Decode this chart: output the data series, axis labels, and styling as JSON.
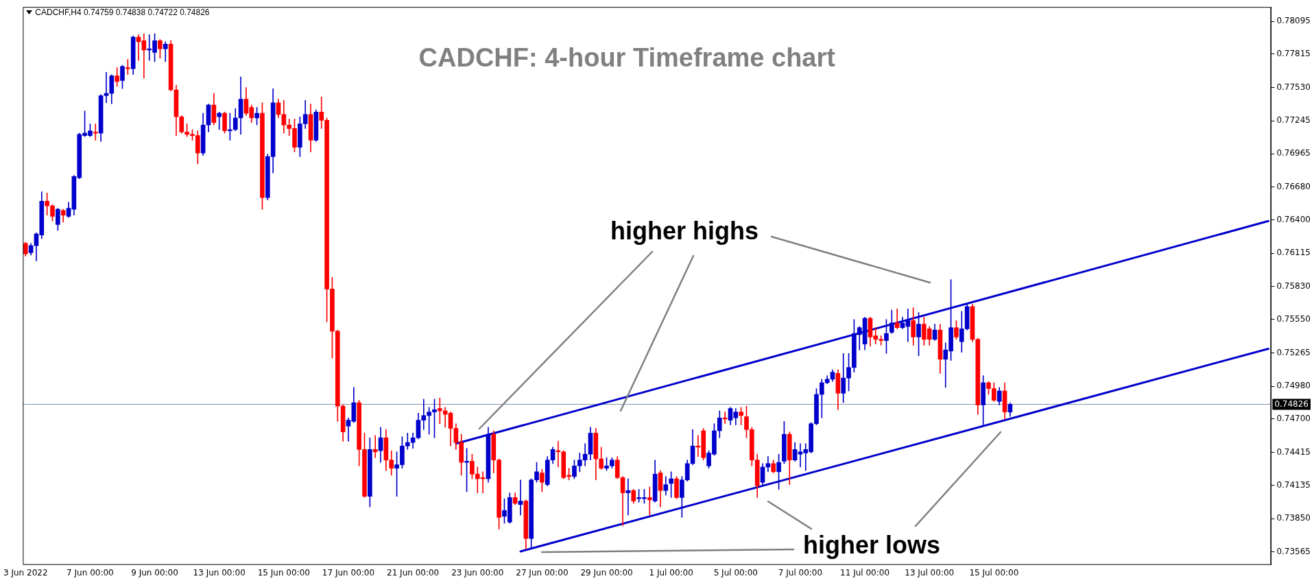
{
  "chart_data": {
    "type": "candlestick",
    "title": "CADCHF: 4-hour Timeframe chart",
    "annotations": [
      "CADCHF,H4 0.74759 0.74838 0.74722 0.74826",
      "higher highs",
      "higher lows"
    ],
    "categories": [
      "3 Jun 2022",
      null,
      null,
      null,
      null,
      null,
      null,
      null,
      null,
      null,
      null,
      null,
      "7 Jun 00:00",
      null,
      null,
      null,
      null,
      null,
      null,
      null,
      null,
      null,
      null,
      null,
      "9 Jun 00:00",
      null,
      null,
      null,
      null,
      null,
      null,
      null,
      null,
      null,
      null,
      null,
      "13 Jun 00:00",
      null,
      null,
      null,
      null,
      null,
      null,
      null,
      null,
      null,
      null,
      null,
      "15 Jun 00:00",
      null,
      null,
      null,
      null,
      null,
      null,
      null,
      null,
      null,
      null,
      null,
      "17 Jun 00:00",
      null,
      null,
      null,
      null,
      null,
      null,
      null,
      null,
      null,
      null,
      null,
      "21 Jun 00:00",
      null,
      null,
      null,
      null,
      null,
      null,
      null,
      null,
      null,
      null,
      null,
      "23 Jun 00:00",
      null,
      null,
      null,
      null,
      null,
      null,
      null,
      null,
      null,
      null,
      null,
      "27 Jun 00:00",
      null,
      null,
      null,
      null,
      null,
      null,
      null,
      null,
      null,
      null,
      null,
      "29 Jun 00:00",
      null,
      null,
      null,
      null,
      null,
      null,
      null,
      null,
      null,
      null,
      null,
      "1 Jul 00:00",
      null,
      null,
      null,
      null,
      null,
      null,
      null,
      null,
      null,
      null,
      null,
      "5 Jul 00:00",
      null,
      null,
      null,
      null,
      null,
      null,
      null,
      null,
      null,
      null,
      null,
      "7 Jul 00:00",
      null,
      null,
      null,
      null,
      null,
      null,
      null,
      null,
      null,
      null,
      null,
      "11 Jul 00:00",
      null,
      null,
      null,
      null,
      null,
      null,
      null,
      null,
      null,
      null,
      null,
      "13 Jul 00:00",
      null,
      null,
      null,
      null,
      null,
      null,
      null,
      null,
      null,
      null,
      null,
      "15 Jul 00:00",
      null,
      null,
      null,
      null,
      null,
      null,
      null,
      null,
      null,
      null,
      null,
      null,
      null,
      null,
      null,
      null,
      null,
      null,
      null,
      null,
      null,
      null,
      null,
      null,
      null,
      null,
      null,
      null,
      null,
      null,
      null,
      null,
      null,
      null,
      null,
      null,
      null,
      null,
      null,
      null,
      null,
      null,
      null,
      null,
      null,
      null,
      null,
      null,
      null,
      null,
      null
    ],
    "ohlc": [
      [
        0.762,
        0.7621,
        0.7609,
        0.7611
      ],
      [
        0.7612,
        0.762,
        0.761,
        0.7618
      ],
      [
        0.7618,
        0.7629,
        0.7605,
        0.7628
      ],
      [
        0.7627,
        0.7664,
        0.7624,
        0.7656
      ],
      [
        0.7656,
        0.7663,
        0.7644,
        0.7652
      ],
      [
        0.7652,
        0.7653,
        0.7639,
        0.7643
      ],
      [
        0.7636,
        0.765,
        0.7631,
        0.7649
      ],
      [
        0.7648,
        0.7649,
        0.7638,
        0.7644
      ],
      [
        0.7643,
        0.7655,
        0.7642,
        0.765
      ],
      [
        0.7649,
        0.7678,
        0.7644,
        0.7677
      ],
      [
        0.7676,
        0.7714,
        0.7675,
        0.7713
      ],
      [
        0.7712,
        0.7733,
        0.7711,
        0.7714
      ],
      [
        0.7712,
        0.7722,
        0.7711,
        0.7716
      ],
      [
        0.7715,
        0.7722,
        0.7708,
        0.7714
      ],
      [
        0.7714,
        0.7747,
        0.7707,
        0.7746
      ],
      [
        0.7746,
        0.7766,
        0.774,
        0.7748
      ],
      [
        0.7748,
        0.7764,
        0.7739,
        0.7763
      ],
      [
        0.7763,
        0.777,
        0.7754,
        0.7758
      ],
      [
        0.7759,
        0.7772,
        0.7752,
        0.7771
      ],
      [
        0.777,
        0.7777,
        0.7764,
        0.7769
      ],
      [
        0.7769,
        0.7797,
        0.7764,
        0.7796
      ],
      [
        0.7796,
        0.7798,
        0.7776,
        0.7792
      ],
      [
        0.7793,
        0.7799,
        0.7761,
        0.7785
      ],
      [
        0.7785,
        0.7798,
        0.7776,
        0.7786
      ],
      [
        0.7783,
        0.7799,
        0.7775,
        0.7793
      ],
      [
        0.7793,
        0.7794,
        0.7778,
        0.7786
      ],
      [
        0.7786,
        0.7792,
        0.7775,
        0.779
      ],
      [
        0.779,
        0.7793,
        0.775,
        0.7751
      ],
      [
        0.7751,
        0.7755,
        0.7712,
        0.7728
      ],
      [
        0.7728,
        0.7729,
        0.7714,
        0.7715
      ],
      [
        0.7715,
        0.7722,
        0.7711,
        0.7713
      ],
      [
        0.7713,
        0.7717,
        0.7708,
        0.7712
      ],
      [
        0.7712,
        0.7716,
        0.7688,
        0.7697
      ],
      [
        0.7697,
        0.7731,
        0.7695,
        0.7721
      ],
      [
        0.7721,
        0.7739,
        0.7715,
        0.7738
      ],
      [
        0.7738,
        0.7748,
        0.7721,
        0.7723
      ],
      [
        0.7728,
        0.7732,
        0.7717,
        0.7731
      ],
      [
        0.7731,
        0.7732,
        0.7714,
        0.7716
      ],
      [
        0.7716,
        0.7731,
        0.7708,
        0.7717
      ],
      [
        0.7717,
        0.7735,
        0.7716,
        0.7727
      ],
      [
        0.7727,
        0.7762,
        0.7713,
        0.7743
      ],
      [
        0.7743,
        0.7753,
        0.7729,
        0.7731
      ],
      [
        0.7736,
        0.7738,
        0.7723,
        0.7727
      ],
      [
        0.7727,
        0.7736,
        0.7721,
        0.7731
      ],
      [
        0.7731,
        0.774,
        0.7649,
        0.7659
      ],
      [
        0.7659,
        0.7696,
        0.7657,
        0.7694
      ],
      [
        0.7694,
        0.7752,
        0.768,
        0.774
      ],
      [
        0.774,
        0.7743,
        0.7727,
        0.773
      ],
      [
        0.773,
        0.7742,
        0.7714,
        0.7721
      ],
      [
        0.7721,
        0.7726,
        0.7712,
        0.7718
      ],
      [
        0.7718,
        0.7726,
        0.7698,
        0.7702
      ],
      [
        0.7702,
        0.7728,
        0.7694,
        0.7722
      ],
      [
        0.7722,
        0.7742,
        0.7718,
        0.773
      ],
      [
        0.773,
        0.7739,
        0.7698,
        0.7708
      ],
      [
        0.7708,
        0.7734,
        0.7707,
        0.7732
      ],
      [
        0.7732,
        0.7745,
        0.7718,
        0.7725
      ],
      [
        0.7725,
        0.7727,
        0.7553,
        0.7581
      ],
      [
        0.7581,
        0.7591,
        0.7522,
        0.7545
      ],
      [
        0.7545,
        0.7546,
        0.7468,
        0.7481
      ],
      [
        0.7481,
        0.7482,
        0.7451,
        0.7459
      ],
      [
        0.7464,
        0.7471,
        0.7451,
        0.7469
      ],
      [
        0.7468,
        0.7497,
        0.7467,
        0.7484
      ],
      [
        0.7484,
        0.7486,
        0.743,
        0.7444
      ],
      [
        0.7444,
        0.7458,
        0.7403,
        0.7404
      ],
      [
        0.7404,
        0.7454,
        0.7395,
        0.7444
      ],
      [
        0.7444,
        0.7456,
        0.7437,
        0.7442
      ],
      [
        0.7443,
        0.7463,
        0.7433,
        0.7454
      ],
      [
        0.7454,
        0.7461,
        0.7426,
        0.7435
      ],
      [
        0.7435,
        0.7443,
        0.7422,
        0.7428
      ],
      [
        0.7428,
        0.7442,
        0.7404,
        0.7431
      ],
      [
        0.7431,
        0.7455,
        0.7428,
        0.7447
      ],
      [
        0.7447,
        0.7458,
        0.7444,
        0.745
      ],
      [
        0.745,
        0.7458,
        0.7445,
        0.7454
      ],
      [
        0.7454,
        0.7475,
        0.7453,
        0.7469
      ],
      [
        0.7469,
        0.7487,
        0.7461,
        0.7473
      ],
      [
        0.7473,
        0.748,
        0.7457,
        0.7476
      ],
      [
        0.7476,
        0.7487,
        0.7454,
        0.7478
      ],
      [
        0.7479,
        0.7488,
        0.7466,
        0.7477
      ],
      [
        0.7477,
        0.748,
        0.7463,
        0.7474
      ],
      [
        0.7475,
        0.7476,
        0.7447,
        0.7462
      ],
      [
        0.7462,
        0.7466,
        0.7444,
        0.745
      ],
      [
        0.745,
        0.7457,
        0.7422,
        0.7433
      ],
      [
        0.7433,
        0.7445,
        0.7408,
        0.7434
      ],
      [
        0.7434,
        0.744,
        0.7419,
        0.7423
      ],
      [
        0.7423,
        0.7429,
        0.7407,
        0.7419
      ],
      [
        0.742,
        0.7425,
        0.7407,
        0.7419
      ],
      [
        0.7419,
        0.7463,
        0.7416,
        0.7457
      ],
      [
        0.7457,
        0.746,
        0.7424,
        0.7435
      ],
      [
        0.7435,
        0.7436,
        0.7376,
        0.7386
      ],
      [
        0.7387,
        0.7402,
        0.7381,
        0.7392
      ],
      [
        0.7382,
        0.7407,
        0.7381,
        0.7403
      ],
      [
        0.7403,
        0.7407,
        0.7397,
        0.7398
      ],
      [
        0.7397,
        0.7418,
        0.7388,
        0.74
      ],
      [
        0.74,
        0.7401,
        0.7359,
        0.7368
      ],
      [
        0.7368,
        0.7419,
        0.736,
        0.7418
      ],
      [
        0.7418,
        0.7433,
        0.7416,
        0.7425
      ],
      [
        0.7424,
        0.7427,
        0.7408,
        0.7416
      ],
      [
        0.7414,
        0.7438,
        0.7413,
        0.7435
      ],
      [
        0.7435,
        0.7446,
        0.7432,
        0.7444
      ],
      [
        0.7443,
        0.7451,
        0.7429,
        0.7442
      ],
      [
        0.7442,
        0.7443,
        0.7419,
        0.742
      ],
      [
        0.7422,
        0.7428,
        0.7418,
        0.7421
      ],
      [
        0.7421,
        0.7435,
        0.7419,
        0.743
      ],
      [
        0.743,
        0.7441,
        0.7425,
        0.7435
      ],
      [
        0.7435,
        0.7449,
        0.743,
        0.744
      ],
      [
        0.744,
        0.7463,
        0.7435,
        0.7458
      ],
      [
        0.7458,
        0.7462,
        0.7418,
        0.7436
      ],
      [
        0.7436,
        0.7446,
        0.7427,
        0.7428
      ],
      [
        0.7428,
        0.7437,
        0.7426,
        0.743
      ],
      [
        0.743,
        0.7437,
        0.7428,
        0.7435
      ],
      [
        0.7435,
        0.7438,
        0.7419,
        0.742
      ],
      [
        0.742,
        0.7421,
        0.7379,
        0.7407
      ],
      [
        0.7407,
        0.7419,
        0.7388,
        0.7409
      ],
      [
        0.7409,
        0.741,
        0.7398,
        0.74
      ],
      [
        0.7402,
        0.741,
        0.7399,
        0.7403
      ],
      [
        0.7402,
        0.741,
        0.7398,
        0.7403
      ],
      [
        0.7403,
        0.7412,
        0.7388,
        0.7401
      ],
      [
        0.74,
        0.7435,
        0.7399,
        0.7423
      ],
      [
        0.7424,
        0.7426,
        0.7395,
        0.7409
      ],
      [
        0.7409,
        0.7421,
        0.7405,
        0.7414
      ],
      [
        0.7415,
        0.7425,
        0.7403,
        0.7419
      ],
      [
        0.7419,
        0.7421,
        0.7402,
        0.7403
      ],
      [
        0.7403,
        0.7421,
        0.7386,
        0.7418
      ],
      [
        0.7418,
        0.7435,
        0.7417,
        0.7432
      ],
      [
        0.7432,
        0.7461,
        0.7431,
        0.7447
      ],
      [
        0.7447,
        0.7456,
        0.7438,
        0.7446
      ],
      [
        0.746,
        0.7462,
        0.7435,
        0.7437
      ],
      [
        0.743,
        0.7443,
        0.7428,
        0.7441
      ],
      [
        0.744,
        0.7466,
        0.7439,
        0.746
      ],
      [
        0.746,
        0.7477,
        0.7454,
        0.7471
      ],
      [
        0.7471,
        0.7476,
        0.7466,
        0.747
      ],
      [
        0.7469,
        0.748,
        0.7465,
        0.7479
      ],
      [
        0.7471,
        0.7479,
        0.7465,
        0.7476
      ],
      [
        0.7476,
        0.748,
        0.7465,
        0.7473
      ],
      [
        0.7472,
        0.7481,
        0.7454,
        0.7461
      ],
      [
        0.7461,
        0.7463,
        0.743,
        0.7435
      ],
      [
        0.7435,
        0.744,
        0.7403,
        0.7413
      ],
      [
        0.7416,
        0.7432,
        0.7413,
        0.7429
      ],
      [
        0.7429,
        0.7438,
        0.7425,
        0.7432
      ],
      [
        0.7432,
        0.7435,
        0.7424,
        0.7425
      ],
      [
        0.7425,
        0.744,
        0.741,
        0.7433
      ],
      [
        0.7434,
        0.7468,
        0.7432,
        0.7457
      ],
      [
        0.7457,
        0.7459,
        0.7414,
        0.7435
      ],
      [
        0.7435,
        0.745,
        0.7434,
        0.7444
      ],
      [
        0.744,
        0.7449,
        0.7429,
        0.7442
      ],
      [
        0.7441,
        0.7449,
        0.7426,
        0.7444
      ],
      [
        0.7442,
        0.7467,
        0.7441,
        0.7466
      ],
      [
        0.7466,
        0.7496,
        0.7465,
        0.7491
      ],
      [
        0.7491,
        0.7504,
        0.7471,
        0.7501
      ],
      [
        0.7501,
        0.7507,
        0.75,
        0.7504
      ],
      [
        0.7504,
        0.7512,
        0.7502,
        0.751
      ],
      [
        0.7509,
        0.7512,
        0.7478,
        0.7492
      ],
      [
        0.7492,
        0.7526,
        0.7484,
        0.7505
      ],
      [
        0.7505,
        0.7526,
        0.7494,
        0.7514
      ],
      [
        0.7514,
        0.7555,
        0.751,
        0.7543
      ],
      [
        0.7542,
        0.7549,
        0.7529,
        0.7548
      ],
      [
        0.7534,
        0.7557,
        0.7529,
        0.7556
      ],
      [
        0.7556,
        0.7557,
        0.7532,
        0.754
      ],
      [
        0.7541,
        0.7548,
        0.7534,
        0.7538
      ],
      [
        0.7538,
        0.7541,
        0.7533,
        0.7537
      ],
      [
        0.7537,
        0.7555,
        0.7526,
        0.7543
      ],
      [
        0.7544,
        0.7563,
        0.7543,
        0.7552
      ],
      [
        0.7552,
        0.7564,
        0.7547,
        0.7548
      ],
      [
        0.7548,
        0.7557,
        0.7547,
        0.7552
      ],
      [
        0.7549,
        0.7564,
        0.7536,
        0.7554
      ],
      [
        0.7554,
        0.7565,
        0.7533,
        0.754
      ],
      [
        0.754,
        0.7561,
        0.7524,
        0.7551
      ],
      [
        0.7551,
        0.7557,
        0.7533,
        0.7538
      ],
      [
        0.7547,
        0.7549,
        0.7533,
        0.7538
      ],
      [
        0.7538,
        0.7551,
        0.7537,
        0.7546
      ],
      [
        0.7546,
        0.7551,
        0.7509,
        0.7521
      ],
      [
        0.7521,
        0.7535,
        0.7497,
        0.7529
      ],
      [
        0.7528,
        0.7589,
        0.752,
        0.7548
      ],
      [
        0.7548,
        0.7554,
        0.7538,
        0.754
      ],
      [
        0.7536,
        0.7562,
        0.7527,
        0.7547
      ],
      [
        0.7547,
        0.7568,
        0.7546,
        0.7566
      ],
      [
        0.7566,
        0.7568,
        0.7536,
        0.7538
      ],
      [
        0.7538,
        0.7539,
        0.7474,
        0.7482
      ],
      [
        0.7482,
        0.7507,
        0.7465,
        0.7501
      ],
      [
        0.7501,
        0.7502,
        0.7491,
        0.7496
      ],
      [
        0.7496,
        0.7501,
        0.7485,
        0.7486
      ],
      [
        0.7485,
        0.7497,
        0.7482,
        0.7494
      ],
      [
        0.7494,
        0.7501,
        0.747,
        0.7476
      ],
      [
        0.74759,
        0.74838,
        0.74722,
        0.74826
      ],
      null,
      null,
      null,
      null,
      null,
      null,
      null,
      null,
      null,
      null,
      null,
      null,
      null,
      null,
      null,
      null,
      null,
      null,
      null,
      null,
      null,
      null,
      null,
      null,
      null,
      null,
      null,
      null,
      null,
      null,
      null,
      null,
      null,
      null,
      null,
      null,
      null,
      null,
      null,
      null,
      null,
      null,
      null,
      null,
      null,
      null,
      null,
      null
    ],
    "colors": [
      "#ff0000",
      "#0000cc",
      "#0000cc",
      "#0000cc",
      "#ff0000",
      "#ff0000",
      "#0000cc",
      "#ff0000",
      "#0000cc",
      "#0000cc",
      "#0000cc",
      "#0000cc",
      "#0000cc",
      "#ff0000",
      "#0000cc",
      "#0000cc",
      "#0000cc",
      "#ff0000",
      "#0000cc",
      "#ff0000",
      "#0000cc",
      "#ff0000",
      "#ff0000",
      "#0000cc",
      "#0000cc",
      "#ff0000",
      "#0000cc",
      "#ff0000",
      "#ff0000",
      "#ff0000",
      "#ff0000",
      "#ff0000",
      "#ff0000",
      "#0000cc",
      "#0000cc",
      "#ff0000",
      "#0000cc",
      "#ff0000",
      "#0000cc",
      "#0000cc",
      "#0000cc",
      "#ff0000",
      "#ff0000",
      "#0000cc",
      "#ff0000",
      "#0000cc",
      "#0000cc",
      "#ff0000",
      "#ff0000",
      "#ff0000",
      "#ff0000",
      "#0000cc",
      "#0000cc",
      "#ff0000",
      "#0000cc",
      "#ff0000",
      "#ff0000",
      "#ff0000",
      "#ff0000",
      "#ff0000",
      "#0000cc",
      "#0000cc",
      "#ff0000",
      "#ff0000",
      "#0000cc",
      "#ff0000",
      "#0000cc",
      "#ff0000",
      "#ff0000",
      "#0000cc",
      "#0000cc",
      "#0000cc",
      "#0000cc",
      "#0000cc",
      "#0000cc",
      "#0000cc",
      "#0000cc",
      "#ff0000",
      "#ff0000",
      "#ff0000",
      "#ff0000",
      "#ff0000",
      "#0000cc",
      "#ff0000",
      "#ff0000",
      "#ff0000",
      "#0000cc",
      "#ff0000",
      "#ff0000",
      "#0000cc",
      "#0000cc",
      "#ff0000",
      "#0000cc",
      "#ff0000",
      "#0000cc",
      "#0000cc",
      "#ff0000",
      "#0000cc",
      "#0000cc",
      "#ff0000",
      "#ff0000",
      "#ff0000",
      "#0000cc",
      "#0000cc",
      "#0000cc",
      "#0000cc",
      "#ff0000",
      "#ff0000",
      "#0000cc",
      "#0000cc",
      "#ff0000",
      "#ff0000",
      "#0000cc",
      "#ff0000",
      "#0000cc",
      "#0000cc",
      "#ff0000",
      "#0000cc",
      "#ff0000",
      "#0000cc",
      "#0000cc",
      "#ff0000",
      "#0000cc",
      "#0000cc",
      "#0000cc",
      "#ff0000",
      "#ff0000",
      "#0000cc",
      "#0000cc",
      "#0000cc",
      "#ff0000",
      "#0000cc",
      "#0000cc",
      "#ff0000",
      "#ff0000",
      "#ff0000",
      "#ff0000",
      "#0000cc",
      "#0000cc",
      "#ff0000",
      "#0000cc",
      "#0000cc",
      "#ff0000",
      "#0000cc",
      "#0000cc",
      "#0000cc",
      "#0000cc",
      "#0000cc",
      "#0000cc",
      "#0000cc",
      "#0000cc",
      "#ff0000",
      "#0000cc",
      "#0000cc",
      "#0000cc",
      "#0000cc",
      "#0000cc",
      "#ff0000",
      "#ff0000",
      "#ff0000",
      "#0000cc",
      "#0000cc",
      "#ff0000",
      "#0000cc",
      "#0000cc",
      "#ff0000",
      "#0000cc",
      "#ff0000",
      "#ff0000",
      "#0000cc",
      "#ff0000",
      "#0000cc",
      "#0000cc",
      "#ff0000",
      "#0000cc",
      "#0000cc",
      "#ff0000",
      "#ff0000",
      "#0000cc",
      "#ff0000",
      "#ff0000",
      "#0000cc",
      "#ff0000",
      "#0000cc",
      null,
      null,
      null,
      null,
      null,
      null,
      null,
      null,
      null,
      null,
      null,
      null,
      null,
      null,
      null,
      null,
      null,
      null,
      null,
      null,
      null,
      null,
      null,
      null,
      null,
      null,
      null,
      null,
      null,
      null,
      null,
      null,
      null,
      null,
      null,
      null,
      null,
      null,
      null,
      null,
      null,
      null,
      null,
      null,
      null,
      null,
      null,
      null
    ],
    "series": [
      {
        "type": "line",
        "color": "#0000cc",
        "values": [
          null,
          null,
          null,
          null,
          null,
          null,
          null,
          null,
          null,
          null,
          null,
          null,
          null,
          null,
          null,
          null,
          null,
          null,
          null,
          null,
          null,
          null,
          null,
          null,
          null,
          null,
          null,
          null,
          null,
          null,
          null,
          null,
          null,
          null,
          null,
          null,
          null,
          null,
          null,
          null,
          null,
          null,
          null,
          null,
          null,
          null,
          null,
          null,
          null,
          null,
          null,
          null,
          null,
          null,
          null,
          null,
          null,
          null,
          null,
          null,
          null,
          null,
          null,
          null,
          null,
          null,
          null,
          null,
          null,
          null,
          null,
          null,
          null,
          null,
          null,
          null,
          null,
          null,
          null,
          null,
          0.7449,
          null,
          null,
          null,
          null,
          null,
          null,
          null,
          null,
          null,
          null,
          null,
          null,
          null,
          null,
          null,
          null,
          null,
          null,
          null,
          null,
          null,
          null,
          null,
          null,
          null,
          null,
          null,
          null,
          null,
          null,
          null,
          null,
          null,
          null,
          null,
          null,
          null,
          null,
          null,
          null,
          null,
          null,
          null,
          null,
          null,
          null,
          null,
          null,
          null,
          null,
          null,
          null,
          null,
          null,
          null,
          null,
          null,
          null,
          null,
          null,
          null,
          null,
          null,
          null,
          null,
          null,
          null,
          null,
          null,
          null,
          null,
          null,
          null,
          null,
          null,
          null,
          null,
          null,
          null,
          null,
          null,
          null,
          null,
          null,
          null,
          null,
          null,
          null,
          null,
          null,
          null,
          null,
          null,
          null,
          null,
          null,
          null,
          null,
          null,
          null,
          null,
          null,
          null,
          null,
          null,
          null,
          null,
          null,
          null,
          null,
          null,
          null,
          null,
          null,
          null,
          null,
          null,
          null,
          null,
          null,
          null,
          null,
          null,
          null,
          null,
          null,
          null,
          null,
          null,
          null,
          null,
          null,
          null,
          null,
          null,
          null,
          null,
          null,
          null,
          null,
          null,
          null,
          null,
          null,
          null,
          null,
          null,
          null,
          null,
          null,
          0.7639
        ]
      },
      {
        "type": "line",
        "color": "#0000cc",
        "values": [
          null,
          null,
          null,
          null,
          null,
          null,
          null,
          null,
          null,
          null,
          null,
          null,
          null,
          null,
          null,
          null,
          null,
          null,
          null,
          null,
          null,
          null,
          null,
          null,
          null,
          null,
          null,
          null,
          null,
          null,
          null,
          null,
          null,
          null,
          null,
          null,
          null,
          null,
          null,
          null,
          null,
          null,
          null,
          null,
          null,
          null,
          null,
          null,
          null,
          null,
          null,
          null,
          null,
          null,
          null,
          null,
          null,
          null,
          null,
          null,
          null,
          null,
          null,
          null,
          null,
          null,
          null,
          null,
          null,
          null,
          null,
          null,
          null,
          null,
          null,
          null,
          null,
          null,
          null,
          null,
          null,
          null,
          null,
          null,
          null,
          null,
          null,
          null,
          null,
          null,
          null,
          null,
          0.7357,
          null,
          null,
          null,
          null,
          null,
          null,
          null,
          null,
          null,
          null,
          null,
          null,
          null,
          null,
          null,
          null,
          null,
          null,
          null,
          null,
          null,
          null,
          null,
          null,
          null,
          null,
          null,
          null,
          null,
          null,
          null,
          null,
          null,
          null,
          null,
          null,
          null,
          null,
          null,
          null,
          null,
          null,
          null,
          null,
          null,
          null,
          null,
          null,
          null,
          null,
          null,
          null,
          null,
          null,
          null,
          null,
          null,
          null,
          null,
          null,
          null,
          null,
          null,
          null,
          null,
          null,
          null,
          null,
          null,
          null,
          null,
          null,
          null,
          null,
          null,
          null,
          null,
          null,
          null,
          null,
          null,
          null,
          null,
          null,
          null,
          null,
          null,
          null,
          null,
          null,
          null,
          null,
          null,
          null,
          null,
          null,
          null,
          null,
          null,
          null,
          null,
          null,
          null,
          null,
          null,
          null,
          null,
          null,
          null,
          null,
          null,
          null,
          null,
          null,
          null,
          null,
          null,
          null,
          null,
          null,
          null,
          null,
          null,
          null,
          null,
          null,
          null,
          null,
          null,
          null,
          null,
          null,
          null,
          null,
          null,
          null,
          null,
          null,
          0.753
        ]
      }
    ],
    "ylim": [
      0.73455,
      0.78217
    ],
    "yticks": [
      0.78095,
      0.77815,
      {
        "value": 0.7753,
        "label": "0.77530"
      },
      0.77245,
      0.76965,
      {
        "value": 0.7668,
        "label": "0.76680"
      },
      {
        "value": 0.764,
        "label": "0.76400"
      },
      0.76115,
      {
        "value": 0.7583,
        "label": "0.75830"
      },
      {
        "value": 0.7555,
        "label": "0.75550"
      },
      0.75265,
      {
        "value": 0.7498,
        "label": "0.74980"
      },
      {
        "value": 0.747,
        "label": "0.74700"
      },
      0.74415,
      0.74135,
      {
        "value": 0.7385,
        "label": "0.73850"
      },
      0.73565
    ],
    "ref_lines": [
      {
        "axis": "y",
        "value": 0.74826,
        "label": "0.74826",
        "color": "#8096ab"
      }
    ],
    "grid": false,
    "legend": false
  }
}
